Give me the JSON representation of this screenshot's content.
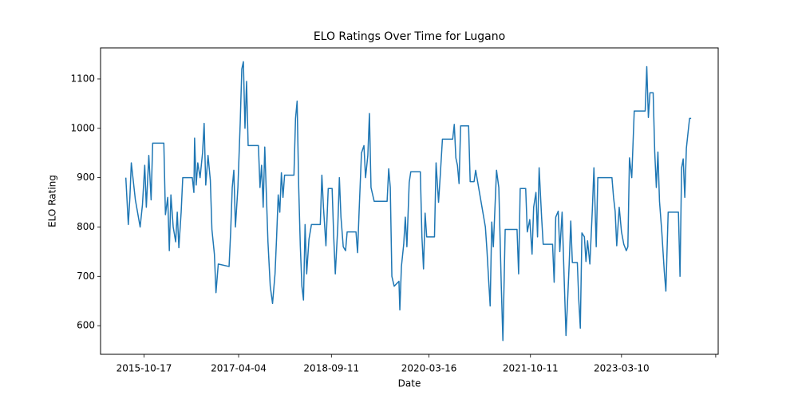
{
  "chart_data": {
    "type": "line",
    "title": "ELO Ratings Over Time for Lugano",
    "x_label": "Date",
    "y_label": "ELO Rating",
    "xlim": [
      "2015-02-13",
      "2024-09-07"
    ],
    "ylim": [
      542,
      1163
    ],
    "xticks": [
      "2015-10-17",
      "2017-04-04",
      "2018-09-11",
      "2020-03-16",
      "2021-10-11",
      "2023-03-10",
      {
        "value": "2024-08-24",
        "label": null
      }
    ],
    "yticks": [
      600,
      700,
      800,
      900,
      1000,
      1100
    ],
    "grid": false,
    "series": [
      {
        "name": "Lugano",
        "color": "#1f77b4",
        "x": [
          "2015-07-06",
          "2015-07-20",
          "2015-07-29",
          "2015-08-06",
          "2015-08-29",
          "2015-09-25",
          "2015-10-08",
          "2015-10-21",
          "2015-10-30",
          "2015-11-13",
          "2015-11-26",
          "2015-12-05",
          "2016-02-06",
          "2016-02-15",
          "2016-02-28",
          "2016-03-08",
          "2016-03-17",
          "2016-03-30",
          "2016-04-13",
          "2016-04-22",
          "2016-05-01",
          "2016-05-14",
          "2016-05-23",
          "2016-07-16",
          "2016-07-25",
          "2016-07-29",
          "2016-08-07",
          "2016-08-16",
          "2016-08-29",
          "2016-09-12",
          "2016-09-21",
          "2016-09-30",
          "2016-10-13",
          "2016-10-26",
          "2016-11-04",
          "2016-11-18",
          "2016-11-27",
          "2016-12-10",
          "2017-02-09",
          "2017-02-18",
          "2017-02-27",
          "2017-03-08",
          "2017-03-17",
          "2017-03-31",
          "2017-04-13",
          "2017-04-22",
          "2017-05-01",
          "2017-05-10",
          "2017-05-19",
          "2017-05-28",
          "2017-07-25",
          "2017-08-03",
          "2017-08-12",
          "2017-08-21",
          "2017-08-30",
          "2017-09-17",
          "2017-09-30",
          "2017-10-13",
          "2017-10-27",
          "2017-11-05",
          "2017-11-14",
          "2017-11-23",
          "2017-12-02",
          "2017-12-11",
          "2017-12-20",
          "2018-02-11",
          "2018-02-20",
          "2018-03-01",
          "2018-03-10",
          "2018-03-19",
          "2018-03-28",
          "2018-04-06",
          "2018-04-15",
          "2018-04-24",
          "2018-05-07",
          "2018-05-21",
          "2018-07-10",
          "2018-07-19",
          "2018-07-28",
          "2018-08-11",
          "2018-08-24",
          "2018-09-15",
          "2018-09-24",
          "2018-10-03",
          "2018-10-17",
          "2018-10-26",
          "2018-11-04",
          "2018-11-17",
          "2018-11-30",
          "2018-12-09",
          "2019-01-28",
          "2019-02-06",
          "2019-02-15",
          "2019-02-28",
          "2019-03-14",
          "2019-03-23",
          "2019-04-05",
          "2019-04-14",
          "2019-04-23",
          "2019-05-11",
          "2019-07-23",
          "2019-08-01",
          "2019-08-10",
          "2019-08-19",
          "2019-09-01",
          "2019-09-28",
          "2019-10-03",
          "2019-10-12",
          "2019-10-25",
          "2019-11-03",
          "2019-11-12",
          "2019-11-25",
          "2019-12-04",
          "2020-01-27",
          "2020-02-05",
          "2020-02-14",
          "2020-02-23",
          "2020-03-03",
          "2020-04-16",
          "2020-04-25",
          "2020-05-09",
          "2020-05-18",
          "2020-05-31",
          "2020-07-28",
          "2020-08-06",
          "2020-08-15",
          "2020-08-24",
          "2020-09-02",
          "2020-09-11",
          "2020-10-26",
          "2020-11-04",
          "2020-11-26",
          "2020-12-05",
          "2021-01-29",
          "2021-02-07",
          "2021-02-16",
          "2021-02-25",
          "2021-03-06",
          "2021-03-15",
          "2021-04-02",
          "2021-04-15",
          "2021-04-29",
          "2021-05-08",
          "2021-05-21",
          "2021-07-27",
          "2021-08-05",
          "2021-08-14",
          "2021-09-14",
          "2021-09-23",
          "2021-10-07",
          "2021-10-20",
          "2021-10-29",
          "2021-11-11",
          "2021-11-20",
          "2021-11-29",
          "2021-12-13",
          "2021-12-22",
          "2022-02-13",
          "2022-02-22",
          "2022-03-03",
          "2022-03-17",
          "2022-03-26",
          "2022-04-08",
          "2022-04-21",
          "2022-04-30",
          "2022-05-09",
          "2022-05-18",
          "2022-05-27",
          "2022-06-05",
          "2022-07-03",
          "2022-07-11",
          "2022-07-20",
          "2022-07-29",
          "2022-08-12",
          "2022-08-21",
          "2022-08-30",
          "2022-09-12",
          "2022-09-26",
          "2022-10-05",
          "2022-10-18",
          "2022-10-27",
          "2023-01-15",
          "2023-01-24",
          "2023-02-02",
          "2023-02-11",
          "2023-02-25",
          "2023-03-10",
          "2023-03-23",
          "2023-04-06",
          "2023-04-15",
          "2023-04-24",
          "2023-05-07",
          "2023-05-21",
          "2023-07-22",
          "2023-07-31",
          "2023-08-09",
          "2023-08-18",
          "2023-09-05",
          "2023-09-14",
          "2023-09-23",
          "2023-10-02",
          "2023-10-11",
          "2023-10-24",
          "2023-11-07",
          "2023-11-16",
          "2023-11-29",
          "2024-01-26",
          "2024-02-04",
          "2024-02-13",
          "2024-02-22",
          "2024-03-02",
          "2024-03-11",
          "2024-03-20",
          "2024-03-29",
          "2024-04-07"
        ],
        "values": [
          900,
          805,
          860,
          930,
          855,
          800,
          845,
          925,
          840,
          945,
          855,
          970,
          970,
          825,
          860,
          752,
          865,
          800,
          770,
          830,
          758,
          830,
          900,
          900,
          870,
          980,
          885,
          930,
          900,
          950,
          1010,
          885,
          945,
          895,
          795,
          745,
          667,
          725,
          720,
          790,
          880,
          915,
          800,
          880,
          1010,
          1120,
          1135,
          1000,
          1095,
          965,
          965,
          880,
          925,
          840,
          962,
          770,
          680,
          645,
          705,
          780,
          865,
          830,
          910,
          860,
          905,
          905,
          1020,
          1055,
          880,
          762,
          680,
          652,
          805,
          705,
          775,
          805,
          805,
          905,
          840,
          762,
          878,
          878,
          780,
          705,
          800,
          900,
          820,
          760,
          752,
          790,
          790,
          748,
          835,
          950,
          965,
          900,
          945,
          1030,
          880,
          852,
          852,
          918,
          880,
          700,
          680,
          690,
          632,
          720,
          765,
          820,
          760,
          890,
          912,
          912,
          780,
          715,
          828,
          780,
          780,
          930,
          850,
          900,
          978,
          978,
          1008,
          940,
          925,
          888,
          1005,
          1005,
          892,
          892,
          915,
          800,
          752,
          695,
          640,
          810,
          760,
          915,
          880,
          680,
          570,
          795,
          795,
          705,
          878,
          878,
          790,
          815,
          745,
          840,
          870,
          780,
          920,
          820,
          765,
          765,
          688,
          820,
          832,
          750,
          830,
          680,
          580,
          650,
          725,
          812,
          728,
          728,
          655,
          595,
          788,
          780,
          730,
          772,
          725,
          835,
          920,
          760,
          900,
          900,
          860,
          832,
          762,
          840,
          790,
          765,
          752,
          760,
          940,
          900,
          1035,
          1035,
          1125,
          1022,
          1072,
          1072,
          952,
          880,
          952,
          852,
          790,
          710,
          670,
          830,
          830,
          700,
          920,
          938,
          860,
          960,
          990,
          1020,
          1020
        ]
      }
    ]
  }
}
